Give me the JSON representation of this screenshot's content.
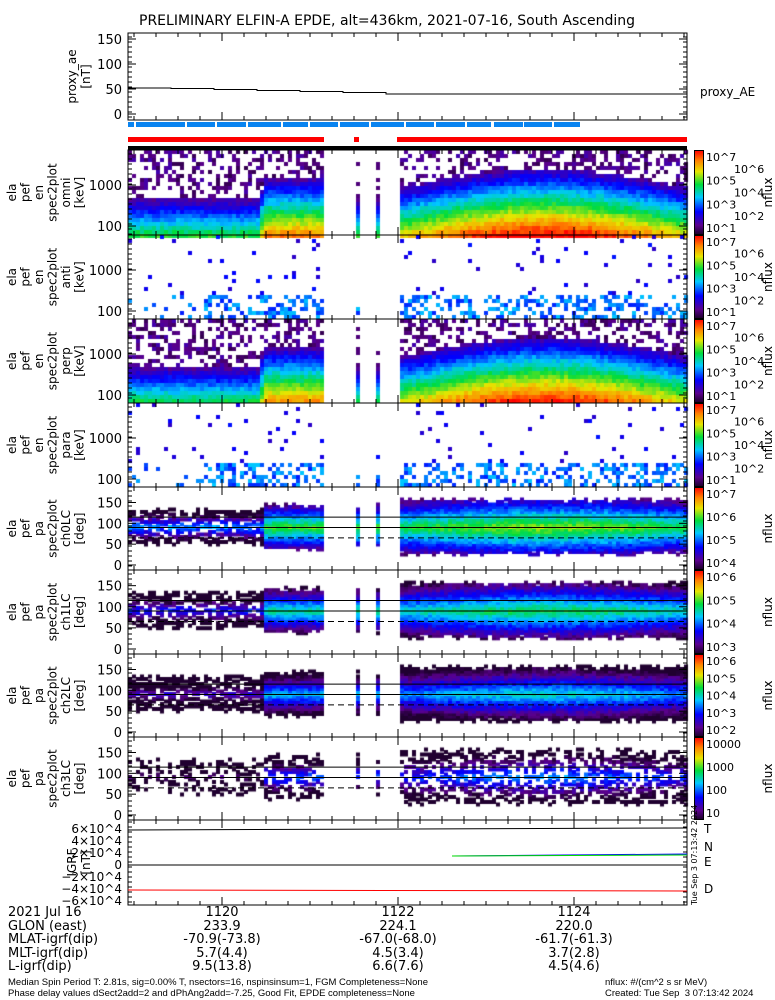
{
  "title": "PRELIMINARY ELFIN-A EPDE, alt=436km, 2021-07-16, South Ascending",
  "chart_data": {
    "type": "heatmap",
    "title": "PRELIMINARY ELFIN-A EPDE, alt=436km, 2021-07-16, South Ascending",
    "x_ticks": [
      "1120",
      "1122",
      "1124"
    ],
    "colors": {
      "science_zone": "#0a84f0",
      "data_bar": "#ff0000",
      "gap_bar": "#000000"
    },
    "panels": [
      {
        "name": "proxy_ae",
        "ylabel": [
          "proxy_ae",
          "[nT]"
        ],
        "yticks": [
          "150",
          "100",
          "50",
          "0"
        ],
        "ylim": [
          0,
          150
        ],
        "legend": "proxy_AE",
        "type": "line",
        "values_approx": [
          52,
          51,
          49,
          47,
          45,
          43,
          40,
          40,
          40,
          40,
          40,
          40,
          40
        ]
      },
      {
        "name": "omni",
        "ylabel": [
          "ela",
          "pef",
          "en",
          "spec2plot",
          "omni",
          "[keV]"
        ],
        "yticks": [
          "1000",
          "100"
        ],
        "cbar": [
          "10^7",
          "10^6",
          "10^5",
          "10^4",
          "10^3",
          "10^2",
          "10^1"
        ],
        "cbar_label": "nflux"
      },
      {
        "name": "anti",
        "ylabel": [
          "ela",
          "pef",
          "en",
          "spec2plot",
          "anti",
          "[keV]"
        ],
        "yticks": [
          "1000",
          "100"
        ],
        "cbar": [
          "10^7",
          "10^6",
          "10^5",
          "10^4",
          "10^3",
          "10^2",
          "10^1"
        ],
        "cbar_label": "nflux"
      },
      {
        "name": "perp",
        "ylabel": [
          "ela",
          "pef",
          "en",
          "spec2plot",
          "perp",
          "[keV]"
        ],
        "yticks": [
          "1000",
          "100"
        ],
        "cbar": [
          "10^7",
          "10^6",
          "10^5",
          "10^4",
          "10^3",
          "10^2",
          "10^1"
        ],
        "cbar_label": "nflux"
      },
      {
        "name": "para",
        "ylabel": [
          "ela",
          "pef",
          "en",
          "spec2plot",
          "para",
          "[keV]"
        ],
        "yticks": [
          "1000",
          "100"
        ],
        "cbar": [
          "10^7",
          "10^6",
          "10^5",
          "10^4",
          "10^3",
          "10^2",
          "10^1"
        ],
        "cbar_label": "nflux"
      },
      {
        "name": "ch0LC",
        "ylabel": [
          "ela",
          "pef",
          "pa",
          "spec2plot",
          "ch0LC",
          "[deg]"
        ],
        "yticks": [
          "150",
          "100",
          "50",
          "0"
        ],
        "cbar": [
          "10^7",
          "10^6",
          "10^5",
          "10^4"
        ],
        "cbar_label": "nflux"
      },
      {
        "name": "ch1LC",
        "ylabel": [
          "ela",
          "pef",
          "pa",
          "spec2plot",
          "ch1LC",
          "[deg]"
        ],
        "yticks": [
          "150",
          "100",
          "50",
          "0"
        ],
        "cbar": [
          "10^6",
          "10^5",
          "10^4",
          "10^3"
        ],
        "cbar_label": "nflux"
      },
      {
        "name": "ch2LC",
        "ylabel": [
          "ela",
          "pef",
          "pa",
          "spec2plot",
          "ch2LC",
          "[deg]"
        ],
        "yticks": [
          "150",
          "100",
          "50",
          "0"
        ],
        "cbar": [
          "10^6",
          "10^5",
          "10^4",
          "10^3",
          "10^2"
        ],
        "cbar_label": "nflux"
      },
      {
        "name": "ch3LC",
        "ylabel": [
          "ela",
          "pef",
          "pa",
          "spec2plot",
          "ch3LC",
          "[deg]"
        ],
        "yticks": [
          "150",
          "100",
          "50",
          "0"
        ],
        "cbar": [
          "10000",
          "1000",
          "100",
          "10"
        ],
        "cbar_label": "nflux"
      },
      {
        "name": "igrf",
        "ylabel": [
          "IGRF",
          "[nT]"
        ],
        "yticks": [
          "6×10^4",
          "4×10^4",
          "2×10^4",
          "0",
          "−2×10^4",
          "−4×10^4",
          "−6×10^4"
        ],
        "legend": [
          "T",
          "N",
          "E",
          "D"
        ],
        "legend_colors": [
          "#000000",
          "#0000ff",
          "#00dd00",
          "#ff0000"
        ],
        "type": "line"
      }
    ]
  },
  "created_vertical": "Tue Sep  3 07:13:42 2024",
  "ephemeris": {
    "labels": [
      "2021 Jul 16",
      "GLON (east)",
      "MLAT-igrf(dip)",
      "MLT-igrf(dip)",
      "L-igrf(dip)"
    ],
    "columns": [
      [
        "1120",
        "233.9",
        "-70.9(-73.8)",
        "5.7(4.4)",
        "9.5(13.8)"
      ],
      [
        "1122",
        "224.1",
        "-67.0(-68.0)",
        "4.5(3.4)",
        "6.6(7.6)"
      ],
      [
        "1124",
        "220.0",
        "-61.7(-61.3)",
        "3.7(2.8)",
        "4.5(4.6)"
      ]
    ]
  },
  "footer": {
    "left1": "Median Spin Period T: 2.81s, sig=0.00% T, nsectors=16, nspinsinsum=1, FGM Completeness=None",
    "left2": "Phase delay values dSect2add=2 and dPhAng2add=-7.25, Good Fit, EPDE completeness=None",
    "right1": "nflux: #/(cm^2 s sr MeV)",
    "right2": "Created: Tue Sep  3 07:13:42 2024"
  }
}
